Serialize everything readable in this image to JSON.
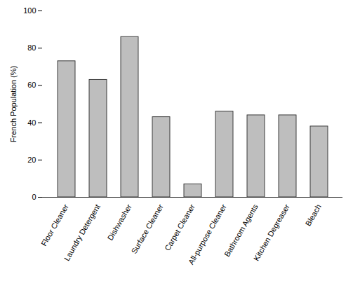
{
  "chart_data": {
    "type": "bar",
    "categories": [
      "Floor Cleaner",
      "Laundry Detergent",
      "Dishwasher",
      "Surface Cleaner",
      "Carpet Cleaner",
      "All-purpose Cleaner",
      "Bathroom Agents",
      "Kitchen Degreaser",
      "Bleach"
    ],
    "values": [
      73,
      63,
      86,
      43,
      7,
      46,
      44,
      44,
      38
    ],
    "color": "#bebebe",
    "ylabel": "French Population (%)",
    "ylim": [
      0,
      100
    ],
    "yticks": [
      0,
      20,
      40,
      60,
      80,
      100
    ],
    "grid": false
  }
}
